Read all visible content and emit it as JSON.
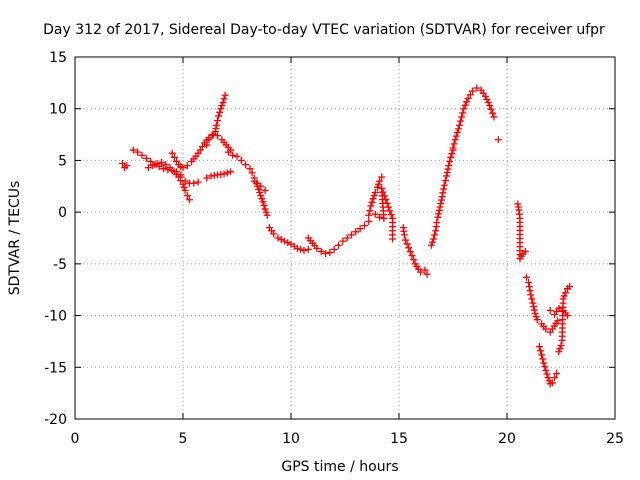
{
  "chart_data": {
    "type": "scatter",
    "title": "Day 312 of 2017, Sidereal Day-to-day VTEC variation (SDTVAR) for receiver ufpr",
    "xlabel": "GPS time / hours",
    "ylabel": "SDTVAR / TECUs",
    "xlim": [
      0,
      25
    ],
    "ylim": [
      -20,
      15
    ],
    "xticks": [
      "0",
      "5",
      "10",
      "15",
      "20",
      "25"
    ],
    "yticks": [
      "15",
      "10",
      "5",
      "0",
      "-5",
      "-10",
      "-15",
      "-20"
    ],
    "grid": true,
    "marker": "plus",
    "color": "#ff0000",
    "tracks": [
      [
        [
          2.2,
          4.7
        ],
        [
          2.3,
          4.3
        ],
        [
          2.4,
          4.5
        ]
      ],
      [
        [
          2.7,
          6.0
        ],
        [
          2.9,
          5.8
        ],
        [
          3.1,
          5.5
        ],
        [
          3.3,
          5.2
        ],
        [
          3.5,
          4.9
        ],
        [
          3.7,
          4.6
        ],
        [
          3.9,
          4.4
        ],
        [
          4.1,
          4.2
        ],
        [
          4.3,
          4.1
        ],
        [
          4.5,
          4.0
        ],
        [
          4.7,
          3.9
        ],
        [
          4.9,
          3.6
        ]
      ],
      [
        [
          3.4,
          4.3
        ],
        [
          3.6,
          4.5
        ],
        [
          3.8,
          4.7
        ],
        [
          4.0,
          4.8
        ],
        [
          4.2,
          4.6
        ],
        [
          4.4,
          4.3
        ],
        [
          4.6,
          3.9
        ],
        [
          4.8,
          3.4
        ],
        [
          5.0,
          2.7
        ],
        [
          5.1,
          2.1
        ],
        [
          5.2,
          1.6
        ],
        [
          5.3,
          1.2
        ]
      ],
      [
        [
          4.5,
          5.7
        ],
        [
          4.6,
          5.3
        ],
        [
          4.7,
          4.9
        ],
        [
          4.8,
          4.6
        ],
        [
          4.9,
          4.4
        ],
        [
          5.0,
          4.3
        ],
        [
          5.2,
          4.5
        ],
        [
          5.4,
          4.9
        ],
        [
          5.6,
          5.4
        ],
        [
          5.8,
          6.0
        ],
        [
          6.0,
          6.7
        ],
        [
          6.2,
          7.2
        ],
        [
          6.4,
          7.5
        ],
        [
          6.6,
          7.4
        ],
        [
          6.8,
          7.0
        ],
        [
          7.0,
          6.5
        ],
        [
          7.2,
          6.0
        ]
      ],
      [
        [
          6.1,
          6.5
        ],
        [
          6.2,
          7.0
        ],
        [
          6.35,
          7.4
        ],
        [
          6.5,
          7.8
        ],
        [
          6.55,
          8.4
        ],
        [
          6.65,
          9.3
        ],
        [
          6.75,
          10.0
        ],
        [
          6.85,
          10.6
        ],
        [
          6.95,
          11.3
        ]
      ],
      [
        [
          4.9,
          3.4
        ],
        [
          5.1,
          3.0
        ],
        [
          5.3,
          2.8
        ],
        [
          5.5,
          2.8
        ],
        [
          5.7,
          2.9
        ]
      ],
      [
        [
          6.1,
          3.3
        ],
        [
          6.3,
          3.5
        ],
        [
          6.6,
          3.6
        ],
        [
          6.9,
          3.7
        ],
        [
          7.2,
          3.9
        ]
      ],
      [
        [
          7.1,
          5.8
        ],
        [
          7.3,
          5.5
        ],
        [
          7.5,
          5.4
        ],
        [
          7.7,
          5.0
        ],
        [
          7.9,
          4.6
        ],
        [
          8.1,
          4.2
        ],
        [
          8.2,
          3.8
        ],
        [
          8.3,
          3.3
        ],
        [
          8.4,
          2.8
        ],
        [
          8.5,
          2.2
        ],
        [
          8.6,
          1.6
        ],
        [
          8.7,
          1.0
        ],
        [
          8.8,
          0.3
        ],
        [
          8.9,
          -0.3
        ]
      ],
      [
        [
          8.3,
          3.0
        ],
        [
          8.6,
          2.5
        ],
        [
          8.8,
          2.1
        ]
      ],
      [
        [
          9.0,
          -1.5
        ],
        [
          9.2,
          -2.1
        ],
        [
          9.4,
          -2.5
        ],
        [
          9.7,
          -2.8
        ],
        [
          10.0,
          -3.1
        ],
        [
          10.3,
          -3.5
        ],
        [
          10.6,
          -3.7
        ],
        [
          10.8,
          -3.6
        ]
      ],
      [
        [
          10.8,
          -2.5
        ],
        [
          11.0,
          -3.0
        ],
        [
          11.2,
          -3.5
        ],
        [
          11.4,
          -3.8
        ],
        [
          11.6,
          -4.0
        ],
        [
          11.8,
          -3.9
        ],
        [
          12.0,
          -3.6
        ],
        [
          12.2,
          -3.2
        ],
        [
          12.4,
          -2.8
        ],
        [
          12.6,
          -2.5
        ],
        [
          12.8,
          -2.2
        ],
        [
          13.0,
          -1.9
        ],
        [
          13.2,
          -1.6
        ],
        [
          13.4,
          -1.3
        ],
        [
          13.6,
          -0.9
        ]
      ],
      [
        [
          13.6,
          -0.3
        ],
        [
          13.7,
          0.6
        ],
        [
          13.8,
          1.3
        ],
        [
          13.9,
          1.9
        ],
        [
          14.0,
          2.4
        ],
        [
          14.1,
          3.0
        ],
        [
          14.2,
          3.4
        ]
      ],
      [
        [
          13.9,
          -0.2
        ],
        [
          14.1,
          -0.5
        ],
        [
          14.3,
          -0.6
        ],
        [
          14.2,
          2.3
        ],
        [
          14.7,
          -0.6
        ],
        [
          14.7,
          -2.6
        ]
      ],
      [
        [
          15.2,
          -1.5
        ],
        [
          15.25,
          -2.2
        ],
        [
          15.3,
          -2.7
        ],
        [
          15.6,
          -4.2
        ],
        [
          15.75,
          -5.0
        ],
        [
          15.9,
          -5.5
        ],
        [
          16.0,
          -5.8
        ],
        [
          16.2,
          -5.6
        ],
        [
          16.3,
          -6.0
        ]
      ],
      [
        [
          16.5,
          -3.2
        ],
        [
          16.6,
          -2.6
        ],
        [
          16.7,
          -1.8
        ],
        [
          16.75,
          -1.0
        ],
        [
          16.8,
          -0.5
        ],
        [
          16.9,
          0.5
        ],
        [
          17.0,
          1.5
        ],
        [
          17.1,
          2.6
        ],
        [
          17.2,
          3.5
        ],
        [
          17.3,
          4.5
        ],
        [
          17.4,
          5.3
        ],
        [
          17.5,
          6.0
        ]
      ],
      [
        [
          17.5,
          6.2
        ],
        [
          17.6,
          7.0
        ],
        [
          17.8,
          8.4
        ],
        [
          17.9,
          9.2
        ],
        [
          18.0,
          10.0
        ],
        [
          18.2,
          11.0
        ],
        [
          18.4,
          11.7
        ],
        [
          18.6,
          12.0
        ],
        [
          18.8,
          11.8
        ],
        [
          19.0,
          11.2
        ],
        [
          19.2,
          10.3
        ],
        [
          19.4,
          9.2
        ]
      ],
      [
        [
          19.6,
          7.0
        ]
      ],
      [
        [
          20.5,
          0.8
        ],
        [
          20.55,
          0.2
        ],
        [
          20.6,
          -0.6
        ],
        [
          20.6,
          -4.5
        ],
        [
          20.75,
          -4.0
        ],
        [
          20.85,
          -3.8
        ]
      ],
      [
        [
          20.9,
          -6.3
        ],
        [
          21.0,
          -6.8
        ],
        [
          21.1,
          -8.0
        ],
        [
          21.2,
          -8.8
        ],
        [
          21.3,
          -9.8
        ],
        [
          21.4,
          -10.4
        ],
        [
          21.6,
          -10.8
        ],
        [
          21.8,
          -11.3
        ],
        [
          22.0,
          -11.6
        ],
        [
          22.2,
          -11.0
        ],
        [
          22.35,
          -10.5
        ]
      ],
      [
        [
          21.5,
          -13.0
        ],
        [
          21.6,
          -13.8
        ],
        [
          21.7,
          -14.6
        ],
        [
          21.8,
          -15.3
        ],
        [
          21.9,
          -16.0
        ],
        [
          22.0,
          -16.6
        ],
        [
          22.1,
          -16.5
        ],
        [
          22.2,
          -16.0
        ],
        [
          22.3,
          -15.6
        ]
      ],
      [
        [
          22.0,
          -9.5
        ],
        [
          22.2,
          -9.9
        ],
        [
          22.4,
          -9.3
        ],
        [
          22.6,
          -9.5
        ],
        [
          22.8,
          -10.0
        ]
      ],
      [
        [
          22.4,
          -13.5
        ],
        [
          22.5,
          -12.9
        ],
        [
          22.55,
          -12.4
        ],
        [
          22.6,
          -8.4
        ],
        [
          22.7,
          -7.8
        ],
        [
          22.8,
          -7.4
        ],
        [
          22.9,
          -7.2
        ]
      ]
    ]
  }
}
